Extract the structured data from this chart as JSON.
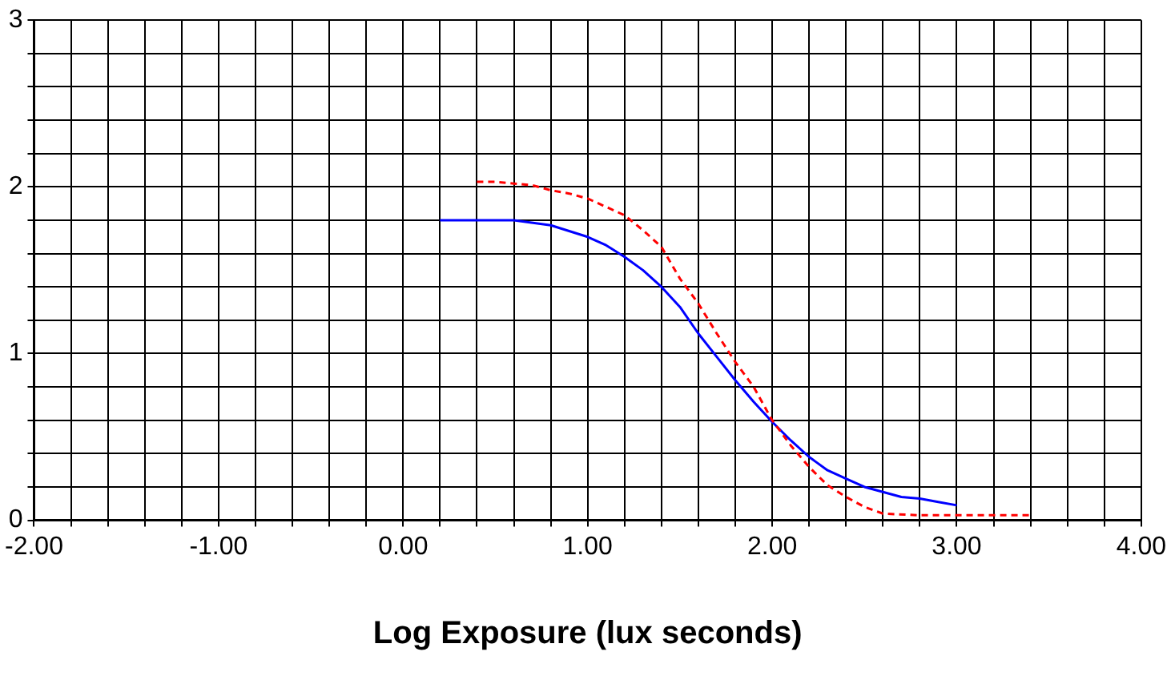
{
  "chart_data": {
    "type": "line",
    "xlabel": "Log Exposure (lux seconds)",
    "grid": true,
    "legend": false,
    "marker": "none",
    "xlim": [
      -2,
      4
    ],
    "ylim": [
      0,
      3
    ],
    "xticks": [
      {
        "value": -2,
        "label": "-2.00"
      },
      {
        "value": -1.8,
        "label": null
      },
      {
        "value": -1.6,
        "label": null
      },
      {
        "value": -1.4,
        "label": null
      },
      {
        "value": -1.2,
        "label": null
      },
      {
        "value": -1,
        "label": "-1.00"
      },
      {
        "value": -0.8,
        "label": null
      },
      {
        "value": -0.6,
        "label": null
      },
      {
        "value": -0.4,
        "label": null
      },
      {
        "value": -0.2,
        "label": null
      },
      {
        "value": 0,
        "label": "0.00"
      },
      {
        "value": 0.2,
        "label": null
      },
      {
        "value": 0.4,
        "label": null
      },
      {
        "value": 0.6,
        "label": null
      },
      {
        "value": 0.8,
        "label": null
      },
      {
        "value": 1,
        "label": "1.00"
      },
      {
        "value": 1.2,
        "label": null
      },
      {
        "value": 1.4,
        "label": null
      },
      {
        "value": 1.6,
        "label": null
      },
      {
        "value": 1.8,
        "label": null
      },
      {
        "value": 2,
        "label": "2.00"
      },
      {
        "value": 2.2,
        "label": null
      },
      {
        "value": 2.4,
        "label": null
      },
      {
        "value": 2.6,
        "label": null
      },
      {
        "value": 2.8,
        "label": null
      },
      {
        "value": 3,
        "label": "3.00"
      },
      {
        "value": 3.2,
        "label": null
      },
      {
        "value": 3.4,
        "label": null
      },
      {
        "value": 3.6,
        "label": null
      },
      {
        "value": 3.8,
        "label": null
      },
      {
        "value": 4,
        "label": "4.00"
      }
    ],
    "yticks": [
      0,
      {
        "value": 0.2,
        "label": null
      },
      {
        "value": 0.4,
        "label": null
      },
      {
        "value": 0.6,
        "label": null
      },
      {
        "value": 0.8,
        "label": null
      },
      1,
      {
        "value": 1.2,
        "label": null
      },
      {
        "value": 1.4,
        "label": null
      },
      {
        "value": 1.6,
        "label": null
      },
      {
        "value": 1.8,
        "label": null
      },
      2,
      {
        "value": 2.2,
        "label": null
      },
      {
        "value": 2.4,
        "label": null
      },
      {
        "value": 2.6,
        "label": null
      },
      {
        "value": 2.8,
        "label": null
      },
      3
    ],
    "series": [
      {
        "color": "#ff0000",
        "line_style": "dashed",
        "x": [
          0.4,
          0.5,
          0.6,
          0.7,
          0.8,
          0.9,
          1.0,
          1.1,
          1.2,
          1.3,
          1.4,
          1.5,
          1.6,
          1.7,
          1.8,
          1.9,
          2.0,
          2.1,
          2.2,
          2.3,
          2.4,
          2.5,
          2.6,
          2.8,
          3.0,
          3.2,
          3.4
        ],
        "values": [
          2.03,
          2.03,
          2.02,
          2.01,
          1.98,
          1.96,
          1.93,
          1.88,
          1.83,
          1.74,
          1.64,
          1.45,
          1.3,
          1.12,
          0.95,
          0.8,
          0.6,
          0.45,
          0.32,
          0.21,
          0.14,
          0.08,
          0.04,
          0.03,
          0.03,
          0.03,
          0.03
        ]
      },
      {
        "color": "#0000ff",
        "line_style": "solid",
        "x": [
          0.2,
          0.4,
          0.6,
          0.8,
          1.0,
          1.1,
          1.2,
          1.3,
          1.4,
          1.5,
          1.6,
          1.7,
          1.8,
          1.9,
          2.0,
          2.1,
          2.2,
          2.3,
          2.4,
          2.5,
          2.6,
          2.7,
          2.8,
          2.9,
          3.0
        ],
        "values": [
          1.8,
          1.8,
          1.8,
          1.77,
          1.7,
          1.65,
          1.58,
          1.5,
          1.4,
          1.28,
          1.12,
          0.98,
          0.84,
          0.71,
          0.59,
          0.48,
          0.38,
          0.3,
          0.25,
          0.2,
          0.17,
          0.14,
          0.13,
          0.11,
          0.09
        ]
      }
    ]
  }
}
